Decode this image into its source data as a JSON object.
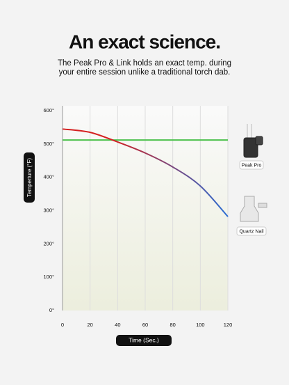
{
  "chart_data": {
    "type": "line",
    "title": "An exact science.",
    "subtitle": [
      "The Peak Pro & Link holds an exact temp. during",
      "your entire session unlike a traditional torch dab."
    ],
    "x_label": "Time (Sec.)",
    "y_label": "Temperture (°F)",
    "x": [
      0,
      20,
      40,
      60,
      80,
      100,
      120
    ],
    "series": [
      {
        "name": "Peak Pro",
        "color": "#4cc24c",
        "values": [
          512,
          512,
          512,
          512,
          512,
          512,
          512
        ]
      },
      {
        "name": "Quartz Nail",
        "color": "#d42020",
        "gradient_to": "#2a6dd4",
        "values": [
          545,
          535,
          506,
          473,
          431,
          374,
          282
        ]
      }
    ],
    "xlim": [
      0,
      120
    ],
    "xticks": [
      0,
      20,
      40,
      60,
      80,
      100,
      120
    ],
    "ylim": [
      0,
      600
    ],
    "yticks": [
      {
        "value": 0,
        "label": "0°"
      },
      {
        "value": 100,
        "label": "100°"
      },
      {
        "value": 200,
        "label": "200°"
      },
      {
        "value": 300,
        "label": "300°"
      },
      {
        "value": 400,
        "label": "400°"
      },
      {
        "value": 500,
        "label": "500°"
      },
      {
        "value": 600,
        "label": "600°"
      }
    ],
    "grid": true
  }
}
